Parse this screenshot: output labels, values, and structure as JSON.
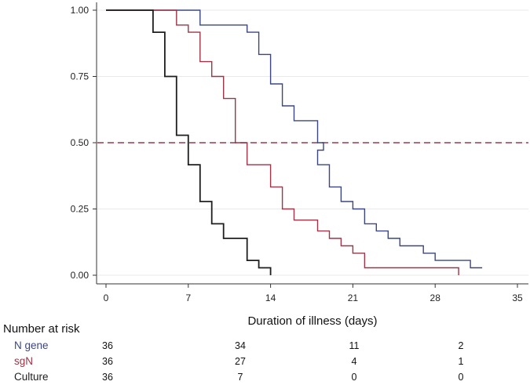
{
  "chart_data": {
    "type": "line",
    "subtype": "kaplan-meier step",
    "xlabel": "Duration of illness (days)",
    "ylabel": "",
    "xlim": [
      0,
      35
    ],
    "ylim": [
      0,
      1
    ],
    "x_ticks": [
      "0",
      "7",
      "14",
      "21",
      "28",
      "35"
    ],
    "y_ticks": [
      "0.00",
      "0.25",
      "0.50",
      "0.75",
      "1.00"
    ],
    "grid": true,
    "reference_line": {
      "y": 0.5,
      "style": "dashed",
      "color": "#9b3a4c"
    },
    "series": [
      {
        "name": "N gene",
        "color": "#3b4680",
        "points": [
          [
            0,
            1.0
          ],
          [
            8,
            1.0
          ],
          [
            8,
            0.944
          ],
          [
            12,
            0.944
          ],
          [
            12,
            0.917
          ],
          [
            13,
            0.917
          ],
          [
            13,
            0.833
          ],
          [
            14,
            0.833
          ],
          [
            14,
            0.722
          ],
          [
            15,
            0.722
          ],
          [
            15,
            0.639
          ],
          [
            16,
            0.639
          ],
          [
            16,
            0.583
          ],
          [
            18,
            0.583
          ],
          [
            18,
            0.556
          ],
          [
            18,
            0.556
          ],
          [
            18,
            0.528
          ],
          [
            18,
            0.528
          ],
          [
            18,
            0.5
          ],
          [
            18,
            0.5
          ],
          [
            18.5,
            0.5
          ],
          [
            18.5,
            0.472
          ],
          [
            18,
            0.472
          ],
          [
            18,
            0.417
          ],
          [
            19,
            0.417
          ],
          [
            19,
            0.333
          ],
          [
            20,
            0.333
          ],
          [
            20,
            0.278
          ],
          [
            21,
            0.278
          ],
          [
            21,
            0.25
          ],
          [
            22,
            0.25
          ],
          [
            22,
            0.194
          ],
          [
            23,
            0.194
          ],
          [
            23,
            0.167
          ],
          [
            24,
            0.167
          ],
          [
            24,
            0.139
          ],
          [
            25,
            0.139
          ],
          [
            25,
            0.111
          ],
          [
            27,
            0.111
          ],
          [
            27,
            0.083
          ],
          [
            28,
            0.083
          ],
          [
            28,
            0.056
          ],
          [
            31,
            0.056
          ],
          [
            31,
            0.028
          ],
          [
            32,
            0.028
          ]
        ]
      },
      {
        "name": "sgN",
        "color": "#9e3447",
        "points": [
          [
            0,
            1.0
          ],
          [
            6,
            1.0
          ],
          [
            6,
            0.944
          ],
          [
            7,
            0.944
          ],
          [
            7,
            0.917
          ],
          [
            8,
            0.917
          ],
          [
            8,
            0.806
          ],
          [
            9,
            0.806
          ],
          [
            9,
            0.75
          ],
          [
            10,
            0.75
          ],
          [
            10,
            0.667
          ],
          [
            11,
            0.667
          ],
          [
            11,
            0.5
          ],
          [
            12,
            0.5
          ],
          [
            12,
            0.417
          ],
          [
            14,
            0.417
          ],
          [
            14,
            0.333
          ],
          [
            15,
            0.333
          ],
          [
            15,
            0.25
          ],
          [
            16,
            0.25
          ],
          [
            16,
            0.208
          ],
          [
            18,
            0.208
          ],
          [
            18,
            0.167
          ],
          [
            19,
            0.167
          ],
          [
            19,
            0.139
          ],
          [
            20,
            0.139
          ],
          [
            20,
            0.111
          ],
          [
            21,
            0.111
          ],
          [
            21,
            0.083
          ],
          [
            22,
            0.083
          ],
          [
            22,
            0.028
          ],
          [
            30,
            0.028
          ],
          [
            30,
            0.0
          ]
        ]
      },
      {
        "name": "Culture",
        "color": "#1e1e1e",
        "points": [
          [
            0,
            1.0
          ],
          [
            4,
            1.0
          ],
          [
            4,
            0.917
          ],
          [
            5,
            0.917
          ],
          [
            5,
            0.75
          ],
          [
            6,
            0.75
          ],
          [
            6,
            0.528
          ],
          [
            7,
            0.528
          ],
          [
            7,
            0.417
          ],
          [
            8,
            0.417
          ],
          [
            8,
            0.278
          ],
          [
            9,
            0.278
          ],
          [
            9,
            0.194
          ],
          [
            10,
            0.194
          ],
          [
            10,
            0.139
          ],
          [
            12,
            0.139
          ],
          [
            12,
            0.056
          ],
          [
            13,
            0.056
          ],
          [
            13,
            0.028
          ],
          [
            14,
            0.028
          ],
          [
            14,
            0.0
          ]
        ]
      }
    ]
  },
  "risk_table": {
    "title": "Number at risk",
    "rows": [
      {
        "label": "N gene",
        "color": "#3b4680",
        "values": [
          "36",
          "34",
          "11",
          "2"
        ]
      },
      {
        "label": "sgN",
        "color": "#9e3447",
        "values": [
          "36",
          "27",
          "4",
          "1"
        ]
      },
      {
        "label": "Culture",
        "color": "#1e1e1e",
        "values": [
          "36",
          "7",
          "0",
          "0"
        ]
      }
    ]
  }
}
